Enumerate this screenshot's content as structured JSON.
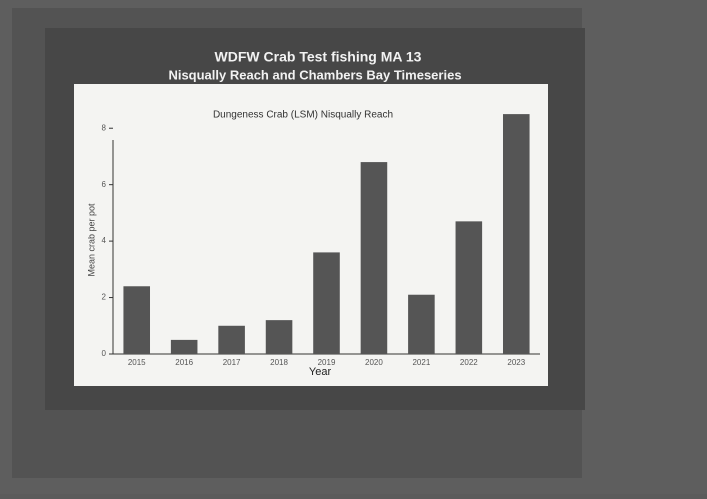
{
  "chart_data": {
    "type": "bar",
    "title": "WDFW Crab Test fishing MA 13",
    "subtitle": "Nisqually Reach and Chambers Bay Timeseries",
    "chart_title": "Dungeness Crab (LSM) Nisqually Reach",
    "x_label": "Year",
    "y_label": "Mean crab per pot",
    "categories": [
      "2015",
      "2016",
      "2017",
      "2018",
      "2019",
      "2020",
      "2021",
      "2022",
      "2023"
    ],
    "values": [
      2.4,
      0.5,
      1.0,
      1.2,
      3.6,
      6.8,
      2.1,
      4.7,
      8.5
    ],
    "color": "#555555",
    "ylim": [
      0,
      9
    ],
    "yticks": [
      0,
      2,
      4,
      6,
      8
    ]
  }
}
